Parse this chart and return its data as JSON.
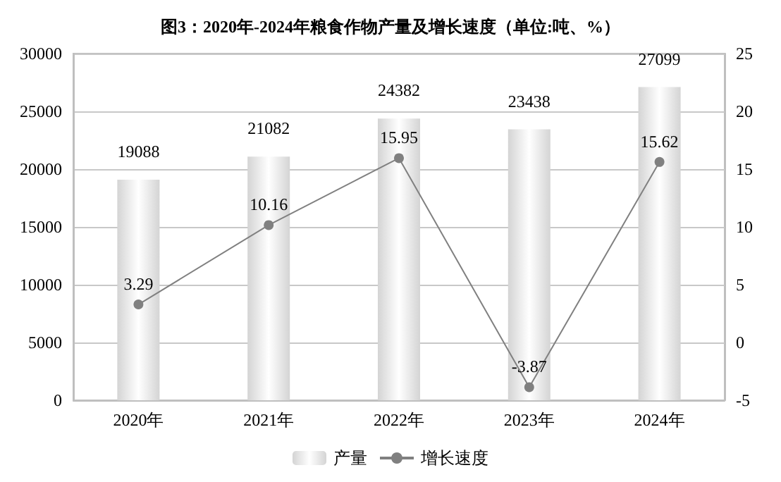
{
  "chart_data": {
    "type": "bar",
    "title": "图3：2020年-2024年粮食作物产量及增长速度（单位:吨、%）",
    "categories": [
      "2020年",
      "2021年",
      "2022年",
      "2023年",
      "2024年"
    ],
    "series": [
      {
        "name": "产量",
        "color": "#d4d4d4",
        "values": [
          19088,
          21082,
          24382,
          23438,
          27099
        ]
      },
      {
        "name": "增长速度",
        "type": "line",
        "axis": "y2",
        "color": "#808080",
        "marker": "circle",
        "values": [
          3.29,
          10.16,
          15.95,
          -3.87,
          15.62
        ]
      }
    ],
    "ylim": [
      0,
      30000
    ],
    "yticks": [
      0,
      5000,
      10000,
      15000,
      20000,
      25000,
      30000
    ],
    "y2lim": [
      -5,
      25
    ],
    "y2ticks": [
      -5,
      0,
      5,
      10,
      15,
      20,
      25
    ],
    "grid": "y",
    "legend": "bottom",
    "data_labels": true
  }
}
